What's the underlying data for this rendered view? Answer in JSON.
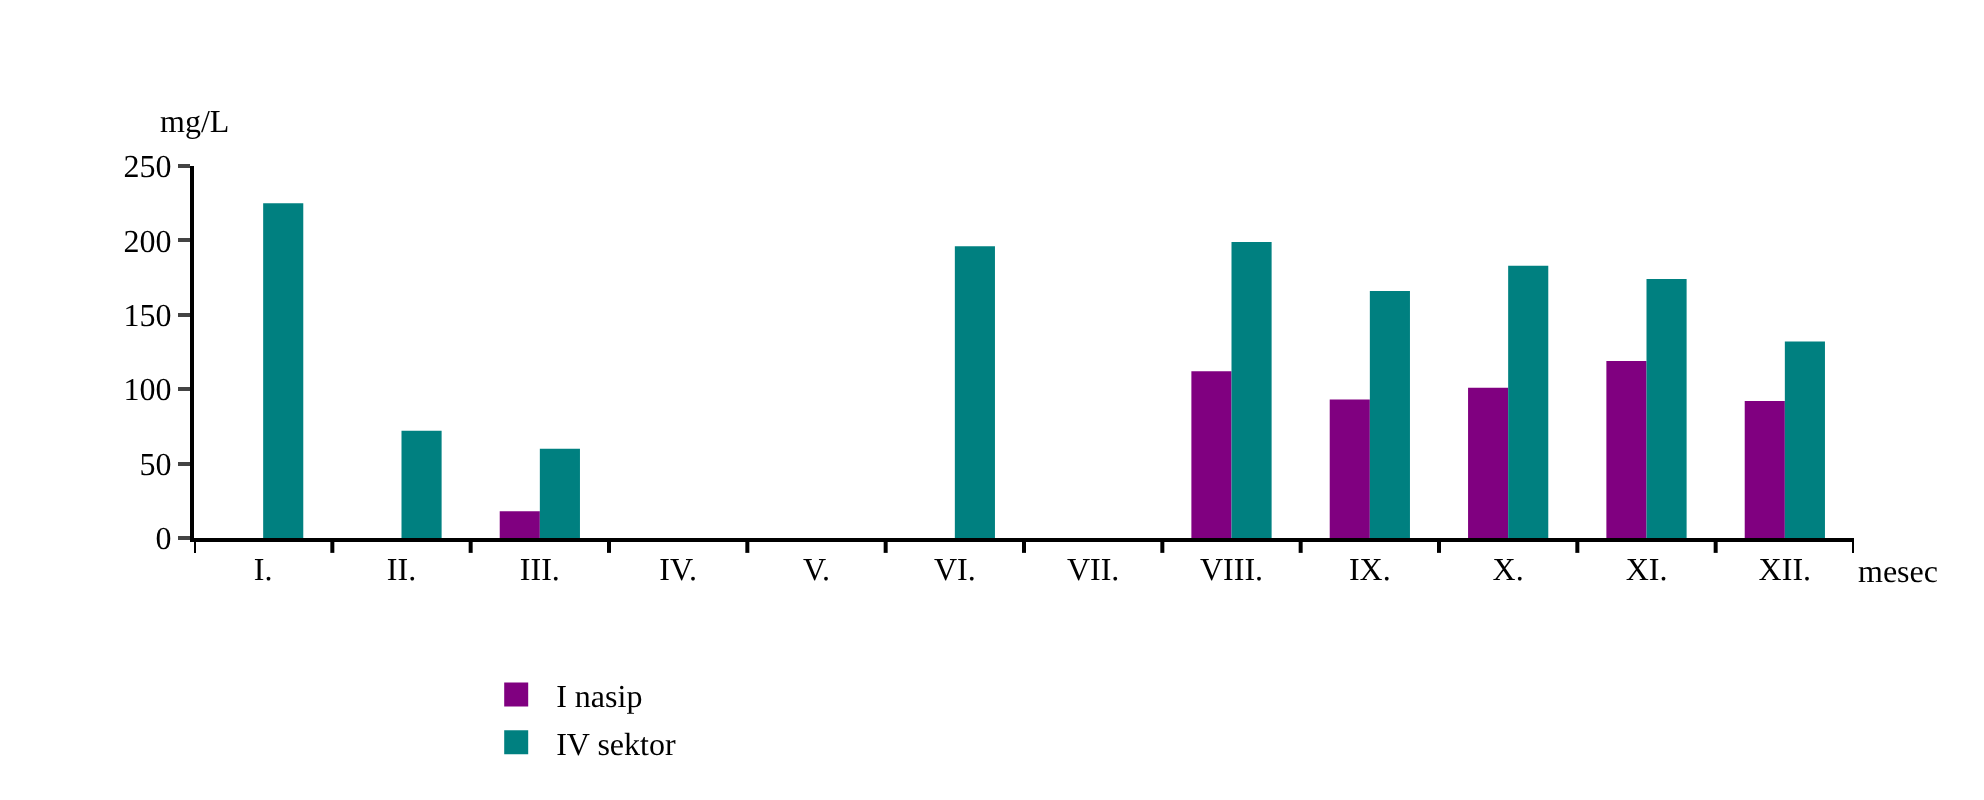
{
  "chart_data": {
    "type": "bar",
    "ylabel": "mg/L",
    "xlabel": "mesec",
    "categories": [
      "I.",
      "II.",
      "III.",
      "IV.",
      "V.",
      "VI.",
      "VII.",
      "VIII.",
      "IX.",
      "X.",
      "XI.",
      "XII."
    ],
    "series": [
      {
        "name": "I nasip",
        "color": "#800080",
        "values": [
          null,
          null,
          18,
          null,
          null,
          null,
          null,
          112,
          93,
          101,
          119,
          92
        ]
      },
      {
        "name": "IV sektor",
        "color": "#008080",
        "values": [
          225,
          72,
          60,
          null,
          null,
          196,
          null,
          199,
          166,
          183,
          174,
          132
        ]
      }
    ],
    "ylim": [
      0,
      250
    ],
    "yticks": [
      0,
      50,
      100,
      150,
      200,
      250
    ],
    "legend": "bottom"
  }
}
